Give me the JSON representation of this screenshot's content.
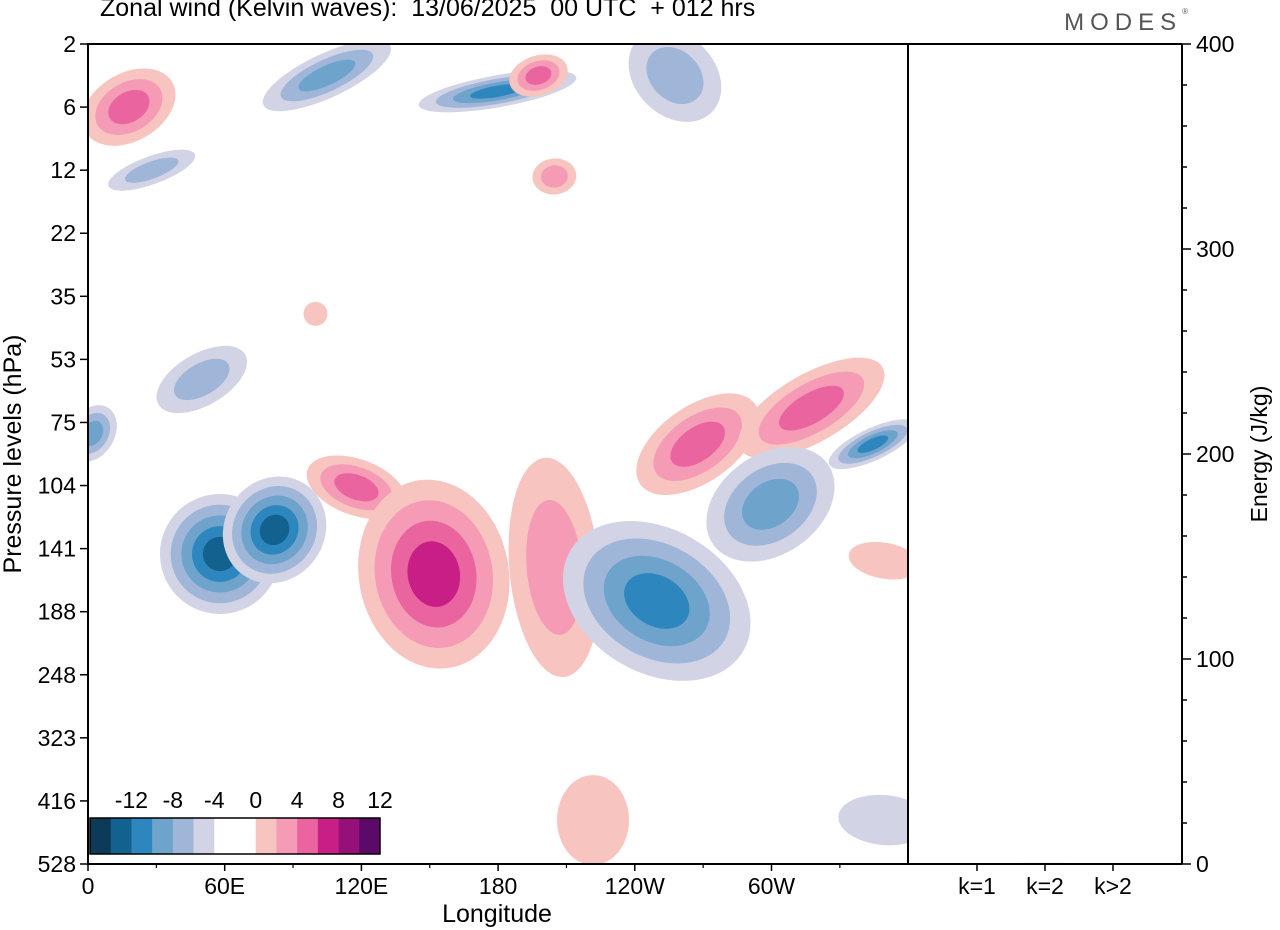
{
  "header": {
    "title": "Zonal wind (Kelvin waves):  13/06/2025  00 UTC  + 012 hrs",
    "brand": "MODES",
    "brand_mark": "®"
  },
  "chart_data": [
    {
      "type": "heatmap",
      "title": "Zonal wind (Kelvin waves):  13/06/2025  00 UTC  + 012 hrs",
      "xlabel": "Longitude",
      "ylabel": "Pressure levels (hPa)",
      "x_ticks": [
        "0",
        "60E",
        "120E",
        "180",
        "120W",
        "60W"
      ],
      "x_range_deg": [
        0,
        360
      ],
      "y_ticks": [
        "2",
        "6",
        "12",
        "22",
        "35",
        "53",
        "75",
        "104",
        "141",
        "188",
        "248",
        "323",
        "416",
        "528"
      ],
      "colorbar": {
        "labels": [
          "-12",
          "-8",
          "-4",
          "0",
          "4",
          "8",
          "12"
        ],
        "colors": [
          "#0d3a56",
          "#12618f",
          "#2d86bd",
          "#6ea3cc",
          "#a0b6d8",
          "#d2d4e6",
          "#ffffff",
          "#ffffff",
          "#f8c4c0",
          "#f59bb5",
          "#ea64a0",
          "#c81f86",
          "#96107a",
          "#5c0a6a"
        ],
        "levels": [
          -14,
          -12,
          -10,
          -8,
          -6,
          -4,
          -2,
          0,
          2,
          4,
          6,
          8,
          10,
          12,
          14
        ]
      },
      "features": [
        {
          "lon": 18,
          "p": "6",
          "sign": "positive",
          "peak": 6
        },
        {
          "lon": 28,
          "p": "12",
          "sign": "negative",
          "peak": -4
        },
        {
          "lon": 105,
          "p": "4",
          "sign": "negative",
          "peak": -6
        },
        {
          "lon": 180,
          "p": "5",
          "sign": "negative",
          "peak": -8
        },
        {
          "lon": 198,
          "p": "4",
          "sign": "positive",
          "peak": 6
        },
        {
          "lon": 205,
          "p": "13",
          "sign": "positive",
          "peak": 4
        },
        {
          "lon": 258,
          "p": "4",
          "sign": "negative",
          "peak": -4
        },
        {
          "lon": 100,
          "p": "40",
          "sign": "positive",
          "peak": 2
        },
        {
          "lon": 50,
          "p": "60",
          "sign": "negative",
          "peak": -4
        },
        {
          "lon": 2,
          "p": "80",
          "sign": "negative",
          "peak": -6
        },
        {
          "lon": 58,
          "p": "145",
          "sign": "negative",
          "peak": -10
        },
        {
          "lon": 82,
          "p": "130",
          "sign": "negative",
          "peak": -10
        },
        {
          "lon": 118,
          "p": "105",
          "sign": "positive",
          "peak": 6
        },
        {
          "lon": 152,
          "p": "160",
          "sign": "positive",
          "peak": 8
        },
        {
          "lon": 205,
          "p": "155",
          "sign": "positive",
          "peak": 4
        },
        {
          "lon": 268,
          "p": "85",
          "sign": "positive",
          "peak": 6
        },
        {
          "lon": 318,
          "p": "70",
          "sign": "positive",
          "peak": 6
        },
        {
          "lon": 345,
          "p": "85",
          "sign": "negative",
          "peak": -8
        },
        {
          "lon": 300,
          "p": "115",
          "sign": "negative",
          "peak": -6
        },
        {
          "lon": 250,
          "p": "180",
          "sign": "negative",
          "peak": -8
        },
        {
          "lon": 350,
          "p": "150",
          "sign": "positive",
          "peak": 2
        },
        {
          "lon": 222,
          "p": "450",
          "sign": "positive",
          "peak": 2
        },
        {
          "lon": 350,
          "p": "450",
          "sign": "negative",
          "peak": -2
        }
      ]
    },
    {
      "type": "bar",
      "categories": [
        "k=1",
        "k=2",
        "k>2"
      ],
      "values": [
        0.3,
        0.5,
        0.3
      ],
      "ylabel": "Energy (J/kg)",
      "ylim": [
        0,
        400
      ],
      "y_ticks": [
        "0",
        "100",
        "200",
        "300",
        "400"
      ]
    }
  ]
}
